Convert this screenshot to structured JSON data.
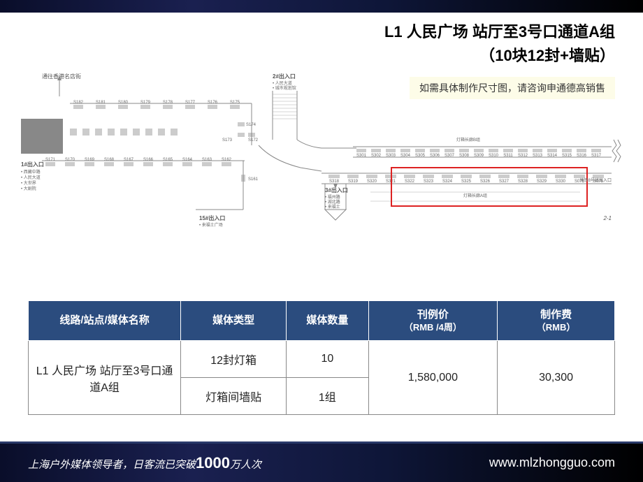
{
  "title": {
    "line1": "L1 人民广场 站厅至3号口通道A组",
    "line2": "（10块12封+墙贴）"
  },
  "notice": "如需具体制作尺寸图，请咨询申通德高销售",
  "diagram": {
    "top_left_label": "通往香港名店街",
    "exit2_label": "2#出入口",
    "exit2_sub": "• 人民大道\n• 城市规划馆",
    "exit1_label": "1#出入口",
    "exit1_sub": "• 西藏中路\n• 人民大道\n• 大世界\n• 大剧院",
    "exit15_label": "15#出入口",
    "exit15_sub": "• 来福士广场",
    "exit3_label": "3#出入口",
    "exit3_sub": "• 福州路\n• 湖北路\n• 来福士",
    "corridor_b": "灯箱长廊B组",
    "corridor_a": "灯箱长廊A组",
    "line8_exit": "地铁8号线出入口",
    "page_marker": "2-1",
    "top_row_slots": [
      "S182",
      "S181",
      "S180",
      "S179",
      "S178",
      "S177",
      "S176",
      "S175"
    ],
    "mid_slots": [
      "S174",
      "S173",
      "S172"
    ],
    "bottom_row_slots": [
      "S171",
      "S170",
      "S169",
      "S168",
      "S167",
      "S166",
      "S165",
      "S164",
      "S163",
      "S162"
    ],
    "s161": "S161",
    "corridor_top": [
      "S301",
      "S302",
      "S303",
      "S304",
      "S305",
      "S306",
      "S307",
      "S308",
      "S309",
      "S310",
      "S311",
      "S312",
      "S313",
      "S314",
      "S315",
      "S316",
      "S317"
    ],
    "corridor_bot_left": [
      "S318",
      "S319",
      "S320"
    ],
    "corridor_bot_red": [
      "S321",
      "S322",
      "S323",
      "S324",
      "S325",
      "S326",
      "S327",
      "S328",
      "S329",
      "S330"
    ],
    "corridor_bot_end": [
      "S076",
      "S075"
    ]
  },
  "table": {
    "headers": {
      "col1": "线路/站点/媒体名称",
      "col2": "媒体类型",
      "col3": "媒体数量",
      "col4": "刊例价",
      "col4_sub": "（RMB /4周）",
      "col5": "制作费",
      "col5_sub": "（RMB）"
    },
    "route_name": "L1  人民广场 站厅至3号口通道A组",
    "row1_type": "12封灯箱",
    "row1_qty": "10",
    "row2_type": "灯箱间墙贴",
    "row2_qty": "1组",
    "price": "1,580,000",
    "production_fee": "30,300"
  },
  "footer": {
    "left_pre": "上海户外媒体领导者，日客流已突破",
    "left_big": "1000",
    "left_post": "万人次",
    "right": "www.mlzhongguo.com"
  }
}
